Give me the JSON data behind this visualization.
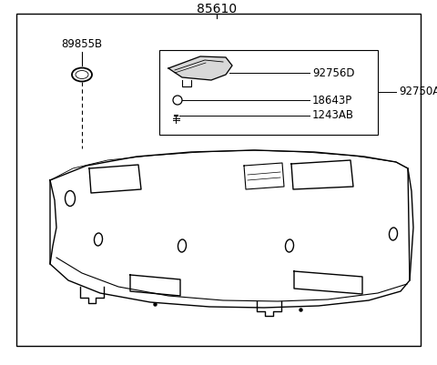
{
  "title": "85610",
  "background_color": "#ffffff",
  "border_color": "#000000",
  "text_color": "#000000",
  "labels": {
    "main": "85610",
    "l1": "89855B",
    "l2": "92756D",
    "l3": "92750A",
    "l4": "18643P",
    "l5": "1243AB"
  },
  "figsize": [
    4.8,
    4.01
  ],
  "dpi": 100
}
